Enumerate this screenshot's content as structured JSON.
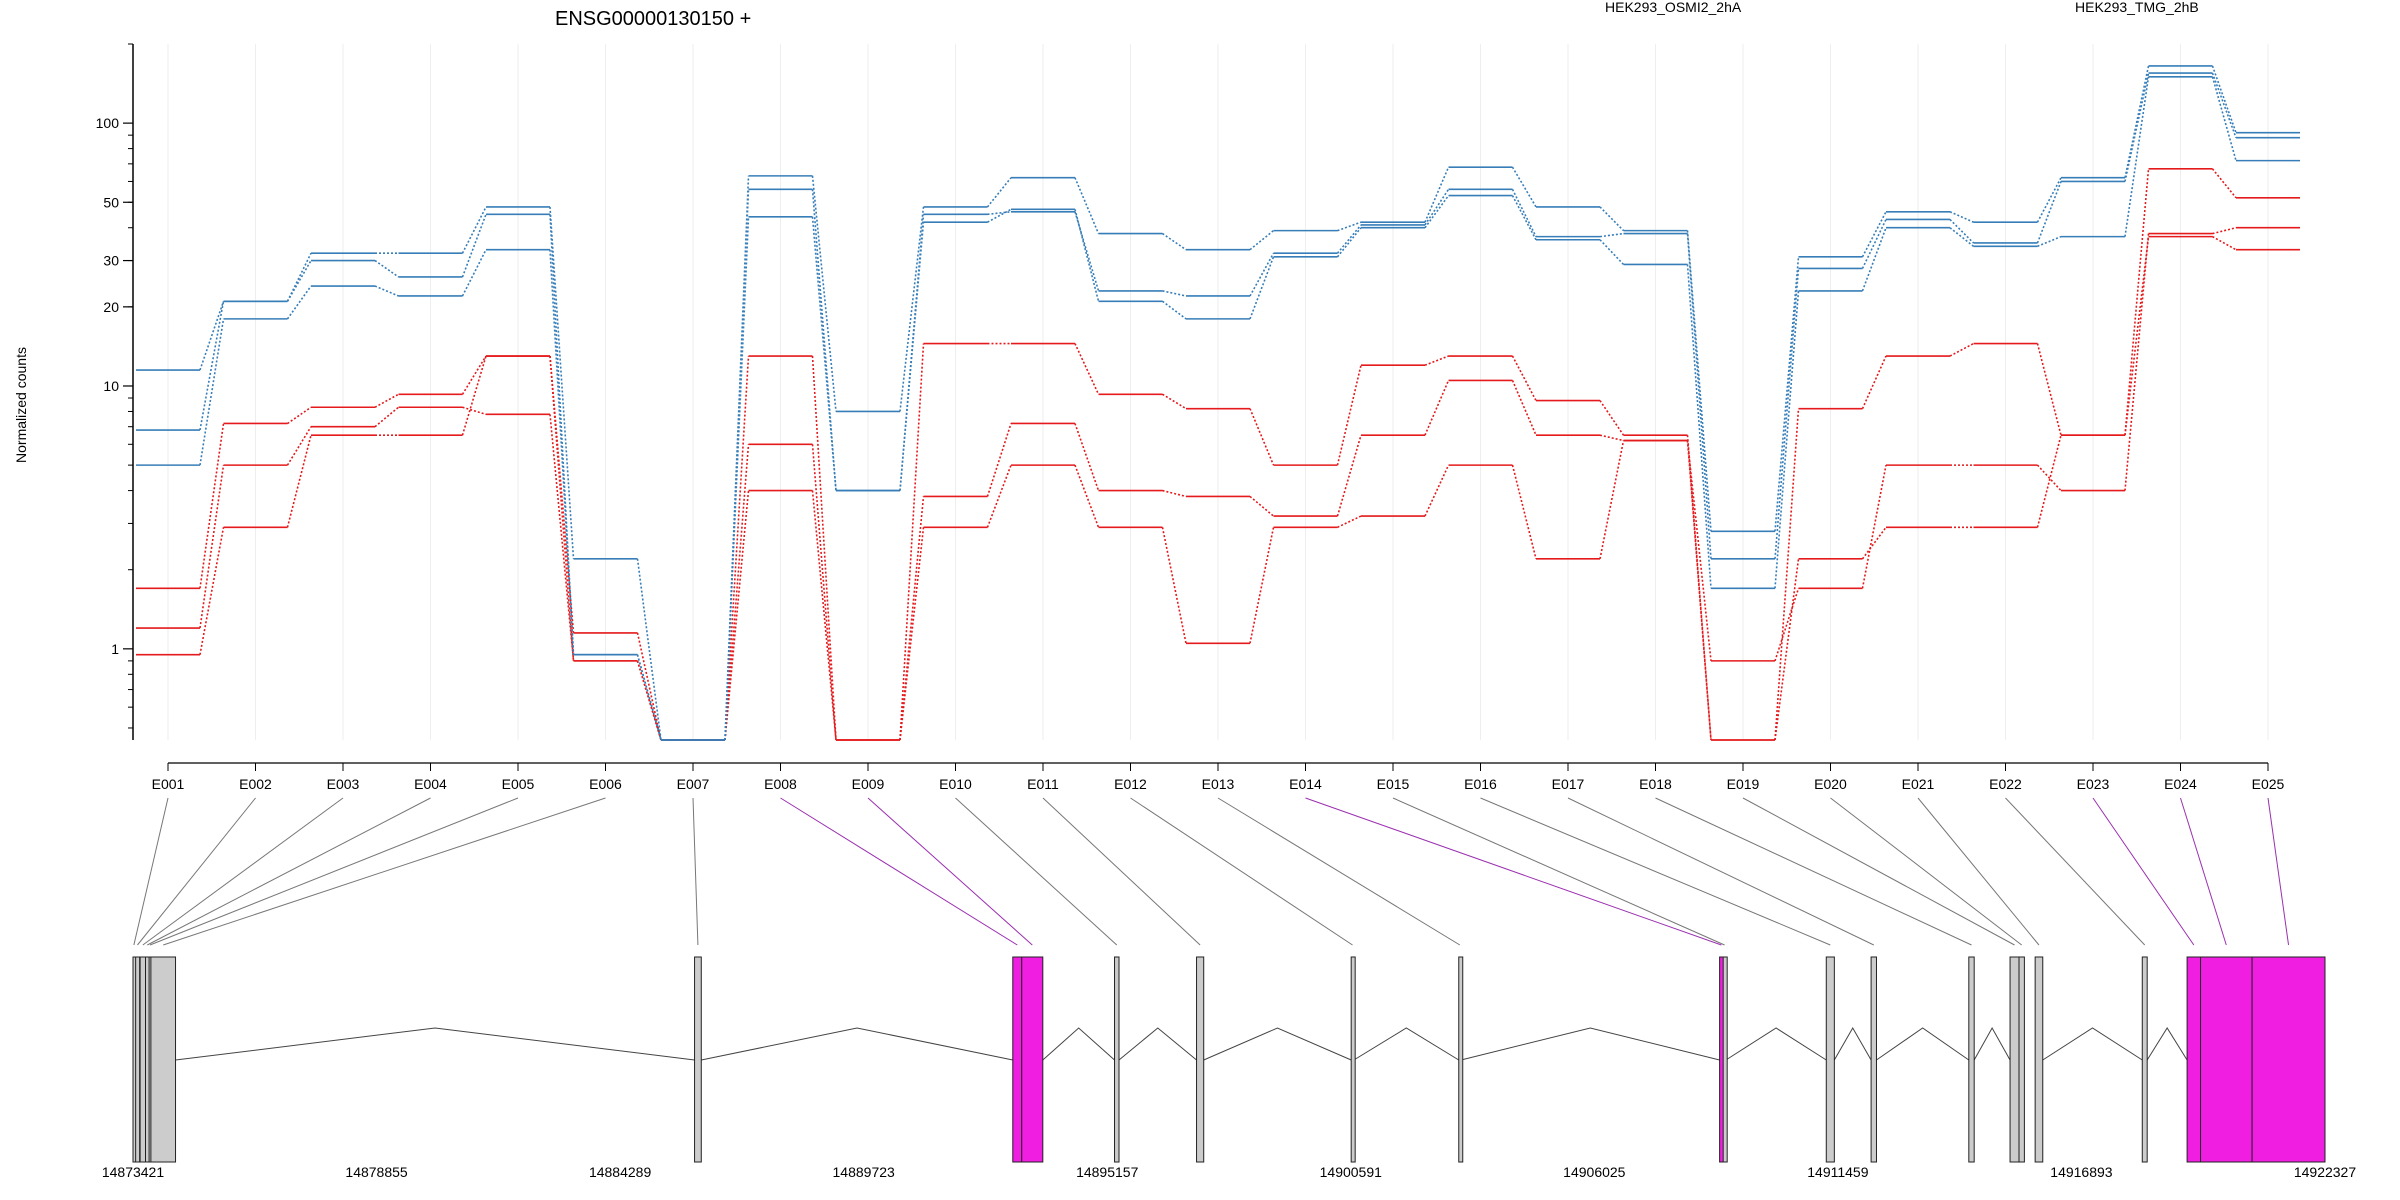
{
  "chart_data": {
    "type": "line",
    "title": "ENSG00000130150 +",
    "ylabel": "Normalized counts",
    "yscale": "log",
    "ylim": [
      0.45,
      200
    ],
    "yticks": [
      1,
      10,
      20,
      30,
      50,
      100
    ],
    "grid": "vertical, light",
    "legend_placement": "top",
    "categories": [
      "E001",
      "E002",
      "E003",
      "E004",
      "E005",
      "E006",
      "E007",
      "E008",
      "E009",
      "E010",
      "E011",
      "E012",
      "E013",
      "E014",
      "E015",
      "E016",
      "E017",
      "E018",
      "E019",
      "E020",
      "E021",
      "E022",
      "E023",
      "E024",
      "E025"
    ],
    "groups": [
      {
        "name": "HEK293_OSMI2_2hA",
        "color": "#e41a1c"
      },
      {
        "name": "HEK293_TMG_2hB",
        "color": "#377eb8"
      }
    ],
    "series": [
      {
        "group": "HEK293_OSMI2_2hA",
        "values": [
          1.7,
          7.2,
          8.3,
          9.3,
          13.0,
          1.15,
          0.45,
          13.0,
          0.45,
          14.5,
          14.5,
          9.3,
          8.2,
          5.0,
          12.0,
          13.0,
          8.8,
          6.5,
          0.45,
          8.2,
          13.0,
          14.5,
          6.5,
          67.0,
          52.0
        ]
      },
      {
        "group": "HEK293_OSMI2_2hA",
        "values": [
          1.2,
          5.0,
          7.0,
          8.3,
          7.8,
          0.9,
          0.45,
          6.0,
          0.45,
          3.8,
          7.2,
          4.0,
          3.8,
          3.2,
          6.5,
          10.5,
          6.5,
          6.2,
          0.9,
          1.7,
          5.0,
          5.0,
          4.0,
          38.0,
          40.0
        ]
      },
      {
        "group": "HEK293_OSMI2_2hA",
        "values": [
          0.95,
          2.9,
          6.5,
          6.5,
          13.0,
          0.9,
          0.45,
          4.0,
          0.45,
          2.9,
          5.0,
          2.9,
          1.05,
          2.9,
          3.2,
          5.0,
          2.2,
          6.2,
          0.45,
          2.2,
          2.9,
          2.9,
          6.5,
          37.0,
          33.0
        ]
      },
      {
        "group": "HEK293_TMG_2hB",
        "values": [
          11.5,
          21.0,
          32.0,
          32.0,
          48.0,
          2.2,
          0.45,
          63.0,
          8.0,
          48.0,
          62.0,
          38.0,
          33.0,
          39.0,
          42.0,
          68.0,
          48.0,
          39.0,
          2.8,
          31.0,
          46.0,
          42.0,
          62.0,
          165.0,
          92.0
        ]
      },
      {
        "group": "HEK293_TMG_2hB",
        "values": [
          6.8,
          21.0,
          30.0,
          26.0,
          45.0,
          0.95,
          0.45,
          56.0,
          4.0,
          45.0,
          46.0,
          23.0,
          22.0,
          32.0,
          41.0,
          56.0,
          37.0,
          38.0,
          2.2,
          28.0,
          43.0,
          35.0,
          60.0,
          155.0,
          88.0
        ]
      },
      {
        "group": "HEK293_TMG_2hB",
        "values": [
          5.0,
          18.0,
          24.0,
          22.0,
          33.0,
          0.95,
          0.45,
          44.0,
          4.0,
          42.0,
          47.0,
          21.0,
          18.0,
          31.0,
          40.0,
          53.0,
          36.0,
          29.0,
          1.7,
          23.0,
          40.0,
          34.0,
          37.0,
          150.0,
          72.0
        ]
      }
    ],
    "genomic_axis": {
      "ticks": [
        "14873421",
        "14878855",
        "14884289",
        "14889723",
        "14895157",
        "14900591",
        "14906025",
        "14911459",
        "14916893",
        "14922327"
      ]
    }
  },
  "exon_track": {
    "colors": {
      "normal": "#cccccc",
      "highlighted": "#f01ee0",
      "connector_normal": "#777777",
      "connector_highlighted": "#9b30b0"
    },
    "exons": [
      {
        "id": "E001",
        "start": 14873421,
        "end": 14873460,
        "highlighted": false
      },
      {
        "id": "E002",
        "start": 14873480,
        "end": 14873560,
        "highlighted": false
      },
      {
        "id": "E003",
        "start": 14873580,
        "end": 14873700,
        "highlighted": false
      },
      {
        "id": "E004",
        "start": 14873700,
        "end": 14873780,
        "highlighted": false
      },
      {
        "id": "E005",
        "start": 14873780,
        "end": 14873820,
        "highlighted": false
      },
      {
        "id": "E006",
        "start": 14873820,
        "end": 14874370,
        "highlighted": false
      },
      {
        "id": "E007",
        "start": 14885950,
        "end": 14886100,
        "highlighted": false
      },
      {
        "id": "E008",
        "start": 14893050,
        "end": 14893250,
        "highlighted": true
      },
      {
        "id": "E009",
        "start": 14893250,
        "end": 14893720,
        "highlighted": true
      },
      {
        "id": "E010",
        "start": 14895320,
        "end": 14895420,
        "highlighted": false
      },
      {
        "id": "E011",
        "start": 14897150,
        "end": 14897310,
        "highlighted": false
      },
      {
        "id": "E012",
        "start": 14900600,
        "end": 14900660,
        "highlighted": false
      },
      {
        "id": "E013",
        "start": 14903000,
        "end": 14903050,
        "highlighted": false
      },
      {
        "id": "E014",
        "start": 14908820,
        "end": 14908900,
        "highlighted": true
      },
      {
        "id": "E015",
        "start": 14908900,
        "end": 14908960,
        "highlighted": false
      },
      {
        "id": "E016",
        "start": 14911200,
        "end": 14911380,
        "highlighted": false
      },
      {
        "id": "E017",
        "start": 14912200,
        "end": 14912320,
        "highlighted": false
      },
      {
        "id": "E018",
        "start": 14914380,
        "end": 14914500,
        "highlighted": false
      },
      {
        "id": "E019",
        "start": 14915300,
        "end": 14915500,
        "highlighted": false
      },
      {
        "id": "E020",
        "start": 14915500,
        "end": 14915620,
        "highlighted": false
      },
      {
        "id": "E021",
        "start": 14915860,
        "end": 14916030,
        "highlighted": false
      },
      {
        "id": "E022",
        "start": 14918250,
        "end": 14918360,
        "highlighted": false
      },
      {
        "id": "E023",
        "start": 14919250,
        "end": 14919550,
        "highlighted": true
      },
      {
        "id": "E024",
        "start": 14919550,
        "end": 14920700,
        "highlighted": true
      },
      {
        "id": "E025",
        "start": 14920700,
        "end": 14922327,
        "highlighted": true
      }
    ]
  }
}
